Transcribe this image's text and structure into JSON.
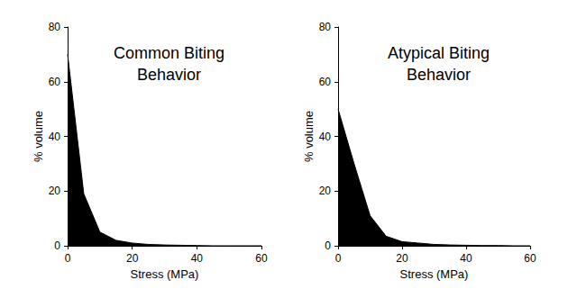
{
  "chart_data": [
    {
      "type": "area",
      "title": "Common Biting Behavior",
      "x": [
        0,
        5,
        10,
        15,
        20,
        25,
        30,
        35,
        40,
        45,
        50,
        55,
        60
      ],
      "values": [
        70,
        19,
        5,
        2,
        1,
        0.5,
        0.3,
        0.2,
        0.1,
        0,
        0,
        0,
        0
      ],
      "color": "#000000",
      "xlabel": "Stress (MPa)",
      "ylabel": "% volume",
      "xlim": [
        0,
        60
      ],
      "xticks": [
        0,
        20,
        40,
        60
      ],
      "ylim": [
        0,
        80
      ],
      "yticks": [
        0,
        20,
        40,
        60,
        80
      ],
      "grid": false
    },
    {
      "type": "area",
      "title": "Atypical Biting Behavior",
      "x": [
        0,
        5,
        10,
        15,
        20,
        25,
        30,
        35,
        40,
        45,
        50,
        55,
        60
      ],
      "values": [
        50,
        30,
        11,
        3.5,
        1.5,
        1,
        0.5,
        0.3,
        0.2,
        0.1,
        0.1,
        0,
        0
      ],
      "color": "#000000",
      "xlabel": "Stress (MPa)",
      "ylabel": "% volume",
      "xlim": [
        0,
        60
      ],
      "xticks": [
        0,
        20,
        40,
        60
      ],
      "ylim": [
        0,
        80
      ],
      "yticks": [
        0,
        20,
        40,
        60,
        80
      ],
      "grid": false
    }
  ]
}
